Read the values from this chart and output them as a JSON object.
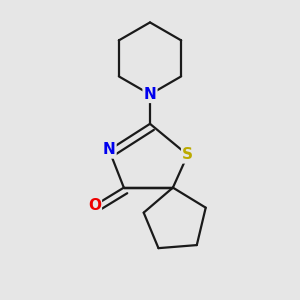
{
  "background_color": "#e6e6e6",
  "bond_color": "#1a1a1a",
  "bond_width": 1.6,
  "atom_colors": {
    "N": "#0000ee",
    "O": "#ee0000",
    "S": "#bbaa00"
  },
  "font_size": 11,
  "fig_size": [
    3.0,
    3.0
  ],
  "dpi": 100
}
